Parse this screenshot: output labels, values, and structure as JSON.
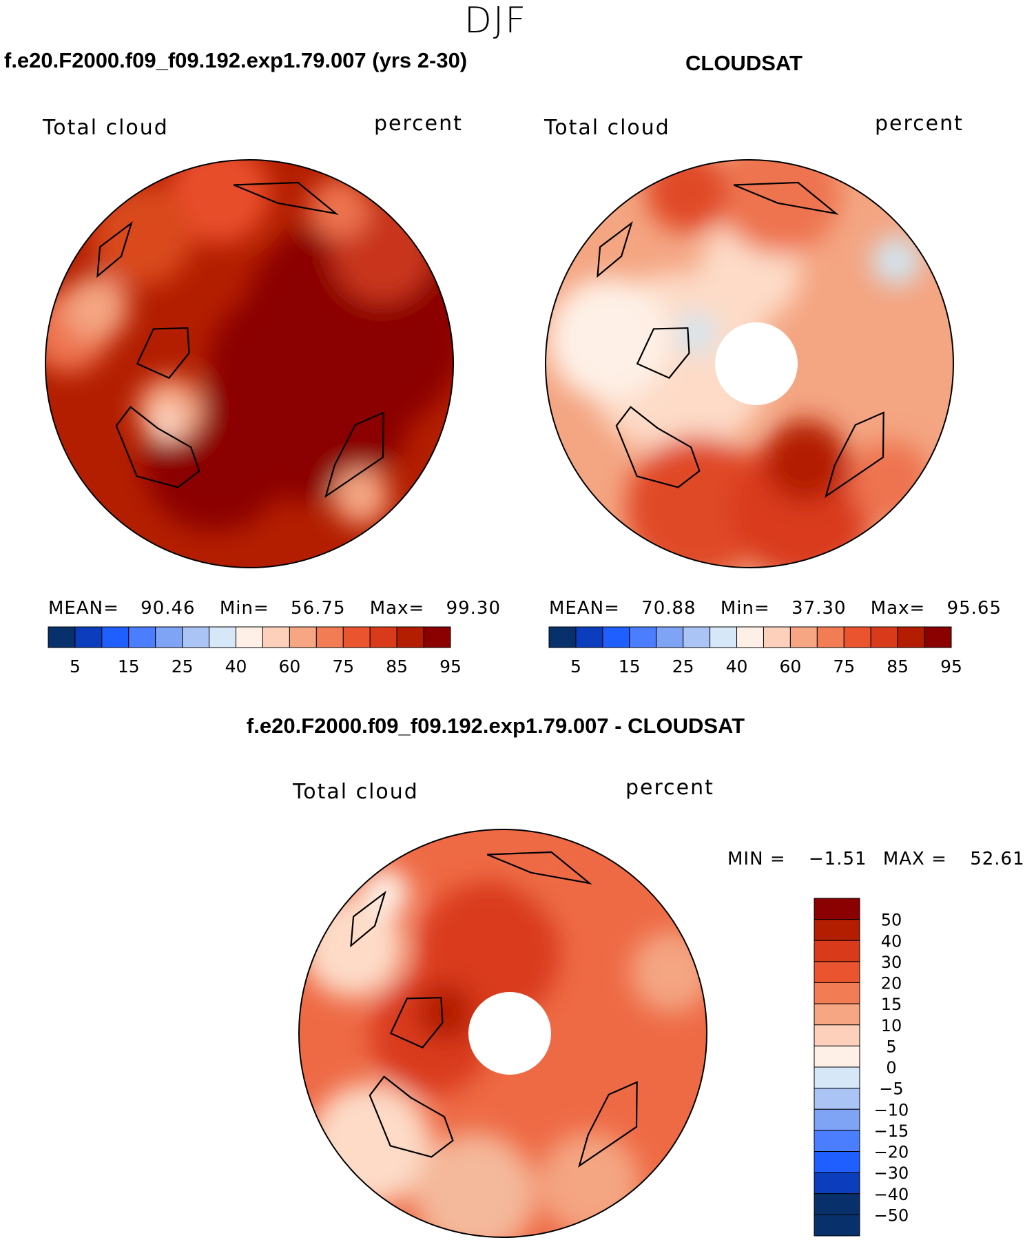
{
  "figure": {
    "season": "DJF",
    "diff_title": "f.e20.F2000.f09_f09.192.exp1.79.007 - CLOUDSAT"
  },
  "panels": [
    {
      "title": "f.e20.F2000.f09_f09.192.exp1.79.007 (yrs 2-30)",
      "variable": "Total cloud",
      "units": "percent",
      "mean_label": "MEAN=",
      "mean": "90.46",
      "min_label": "Min=",
      "min": "56.75",
      "max_label": "Max=",
      "max": "99.30",
      "base_color": "#b31e00",
      "blobs": [
        {
          "r": 0.55,
          "a": 20,
          "s": 0.55,
          "c": "#8b0000"
        },
        {
          "r": 0.35,
          "a": 330,
          "s": 0.5,
          "c": "#8b0000"
        },
        {
          "r": 0.5,
          "a": 250,
          "s": 0.35,
          "c": "#8b0000"
        },
        {
          "r": 0.15,
          "a": 0,
          "s": 0.35,
          "c": "#8b0000"
        },
        {
          "r": 0.85,
          "a": 40,
          "s": 0.25,
          "c": "#c8361b"
        },
        {
          "r": 0.85,
          "a": 100,
          "s": 0.25,
          "c": "#e84d2b"
        },
        {
          "r": 0.82,
          "a": 130,
          "s": 0.25,
          "c": "#d94a1f"
        },
        {
          "r": 0.9,
          "a": 170,
          "s": 0.2,
          "c": "#ee7350"
        },
        {
          "r": 0.8,
          "a": 160,
          "s": 0.16,
          "c": "#f4a582"
        },
        {
          "r": 0.45,
          "a": 210,
          "s": 0.16,
          "c": "#f4a582"
        },
        {
          "r": 0.5,
          "a": 215,
          "s": 0.08,
          "c": "#fddbc7"
        },
        {
          "r": 0.85,
          "a": 310,
          "s": 0.14,
          "c": "#f4a582"
        },
        {
          "r": 0.88,
          "a": 60,
          "s": 0.15,
          "c": "#ee7350"
        }
      ]
    },
    {
      "title": "CLOUDSAT",
      "variable": "Total cloud",
      "units": "percent",
      "mean_label": "MEAN=",
      "mean": "70.88",
      "min_label": "Min=",
      "min": "37.30",
      "max_label": "Max=",
      "max": "95.65",
      "base_color": "#f4a582",
      "blobs": [
        {
          "r": 0.35,
          "a": 180,
          "s": 0.45,
          "c": "#fddbc7"
        },
        {
          "r": 0.7,
          "a": 170,
          "s": 0.3,
          "c": "#fef0e6"
        },
        {
          "r": 0.45,
          "a": 90,
          "s": 0.25,
          "c": "#fddbc7"
        },
        {
          "r": 0.75,
          "a": 250,
          "s": 0.35,
          "c": "#e04a26"
        },
        {
          "r": 0.75,
          "a": 290,
          "s": 0.35,
          "c": "#d93b1a"
        },
        {
          "r": 0.55,
          "a": 300,
          "s": 0.2,
          "c": "#b31e00"
        },
        {
          "r": 0.85,
          "a": 80,
          "s": 0.3,
          "c": "#ee7350"
        },
        {
          "r": 0.9,
          "a": 110,
          "s": 0.2,
          "c": "#e04a26"
        },
        {
          "r": 0.88,
          "a": 35,
          "s": 0.12,
          "c": "#d1e5f0"
        },
        {
          "r": 0.3,
          "a": 150,
          "s": 0.1,
          "c": "#d1e5f0"
        },
        {
          "r": 0.9,
          "a": 320,
          "s": 0.2,
          "c": "#ee7350"
        }
      ]
    },
    {
      "variable": "Total cloud",
      "units": "percent",
      "min_label": "MIN =",
      "min": "−1.51",
      "max_label": "MAX =",
      "max": "52.61",
      "base_color": "#ee6a45",
      "blobs": [
        {
          "r": 0.4,
          "a": 100,
          "s": 0.35,
          "c": "#d93b1a"
        },
        {
          "r": 0.35,
          "a": 180,
          "s": 0.3,
          "c": "#d93b1a"
        },
        {
          "r": 0.3,
          "a": 160,
          "s": 0.14,
          "c": "#b31e00"
        },
        {
          "r": 0.85,
          "a": 220,
          "s": 0.3,
          "c": "#fddbc7"
        },
        {
          "r": 0.8,
          "a": 260,
          "s": 0.3,
          "c": "#f4b89a"
        },
        {
          "r": 0.85,
          "a": 300,
          "s": 0.25,
          "c": "#f4a582"
        },
        {
          "r": 0.85,
          "a": 150,
          "s": 0.25,
          "c": "#fddbc7"
        },
        {
          "r": 0.88,
          "a": 20,
          "s": 0.2,
          "c": "#f4a582"
        },
        {
          "r": 0.9,
          "a": 130,
          "s": 0.12,
          "c": "#fef0e6"
        },
        {
          "r": 0.85,
          "a": 70,
          "s": 0.2,
          "c": "#ee6a45"
        }
      ]
    }
  ],
  "abs_colorbar": {
    "colors": [
      "#08306b",
      "#0b3dbd",
      "#1f5fff",
      "#4a7dff",
      "#7fa3f5",
      "#aac4f5",
      "#d6e8f8",
      "#fef0e6",
      "#fcd0bb",
      "#f7a684",
      "#f27d55",
      "#ea5530",
      "#d93b1a",
      "#b31e00",
      "#8b0000"
    ],
    "labels": [
      "5",
      "15",
      "25",
      "40",
      "60",
      "75",
      "85",
      "95"
    ]
  },
  "diff_colorbar": {
    "colors": [
      "#8b0000",
      "#b31e00",
      "#d93b1a",
      "#ea5530",
      "#f27d55",
      "#f7a684",
      "#fcd0bb",
      "#fef0e6",
      "#d6e8f8",
      "#aac4f5",
      "#7fa3f5",
      "#4a7dff",
      "#1f5fff",
      "#0b3dbd",
      "#08306b"
    ],
    "labels": [
      "50",
      "40",
      "30",
      "20",
      "15",
      "10",
      "5",
      "0",
      "−5",
      "−10",
      "−15",
      "−20",
      "−30",
      "−40",
      "−50"
    ]
  }
}
